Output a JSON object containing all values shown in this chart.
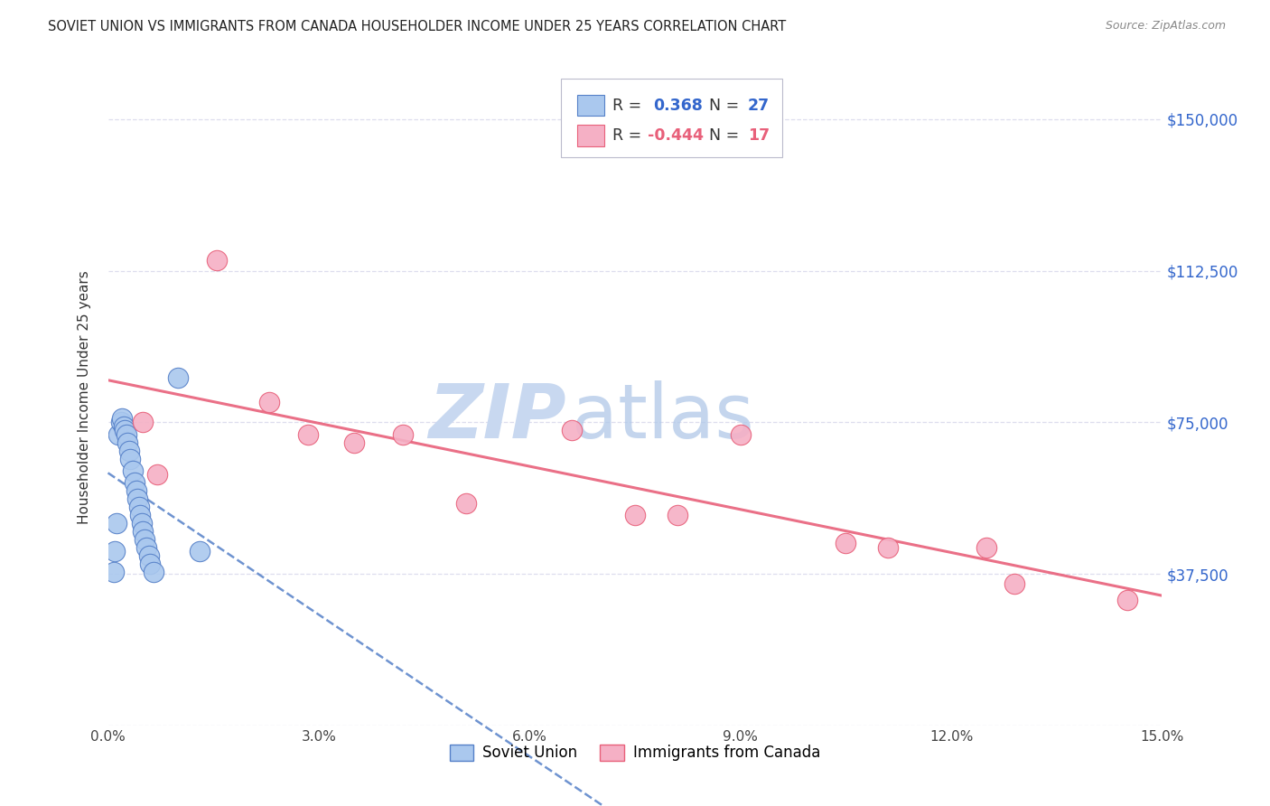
{
  "title": "SOVIET UNION VS IMMIGRANTS FROM CANADA HOUSEHOLDER INCOME UNDER 25 YEARS CORRELATION CHART",
  "source": "Source: ZipAtlas.com",
  "ylabel": "Householder Income Under 25 years",
  "r_soviet": 0.368,
  "n_soviet": 27,
  "r_canada": -0.444,
  "n_canada": 17,
  "soviet_color": "#aac8ee",
  "soviet_line_color": "#5580c8",
  "canada_color": "#f5b0c5",
  "canada_line_color": "#e8607a",
  "legend_blue": "#3366cc",
  "legend_pink": "#e8607a",
  "text_black": "#333333",
  "background_color": "#ffffff",
  "grid_color": "#ddddee",
  "yticks": [
    0,
    37500,
    75000,
    112500,
    150000
  ],
  "ytick_labels": [
    "",
    "$37,500",
    "$75,000",
    "$112,500",
    "$150,000"
  ],
  "xlim": [
    0.0,
    15.0
  ],
  "ylim": [
    0,
    162500
  ],
  "xtick_vals": [
    0.0,
    3.0,
    6.0,
    9.0,
    12.0,
    15.0
  ],
  "xtick_labels": [
    "0.0%",
    "3.0%",
    "6.0%",
    "9.0%",
    "12.0%",
    "15.0%"
  ],
  "soviet_x": [
    0.08,
    0.1,
    0.12,
    0.15,
    0.18,
    0.2,
    0.22,
    0.24,
    0.26,
    0.28,
    0.3,
    0.32,
    0.35,
    0.38,
    0.4,
    0.42,
    0.44,
    0.46,
    0.48,
    0.5,
    0.52,
    0.55,
    0.58,
    0.6,
    0.65,
    1.0,
    1.3
  ],
  "soviet_y": [
    38000,
    43000,
    50000,
    72000,
    75000,
    76000,
    74000,
    73000,
    72000,
    70000,
    68000,
    66000,
    63000,
    60000,
    58000,
    56000,
    54000,
    52000,
    50000,
    48000,
    46000,
    44000,
    42000,
    40000,
    38000,
    86000,
    43000
  ],
  "canada_x": [
    0.5,
    0.7,
    1.55,
    2.3,
    2.85,
    3.5,
    4.2,
    5.1,
    6.6,
    7.5,
    8.1,
    9.0,
    10.5,
    11.1,
    12.5,
    12.9,
    14.5
  ],
  "canada_y": [
    75000,
    62000,
    115000,
    80000,
    72000,
    70000,
    72000,
    55000,
    73000,
    52000,
    52000,
    72000,
    45000,
    44000,
    44000,
    35000,
    31000
  ],
  "watermark_color": "#c8d8f0",
  "watermark_atlas_color": "#b0c8e8"
}
